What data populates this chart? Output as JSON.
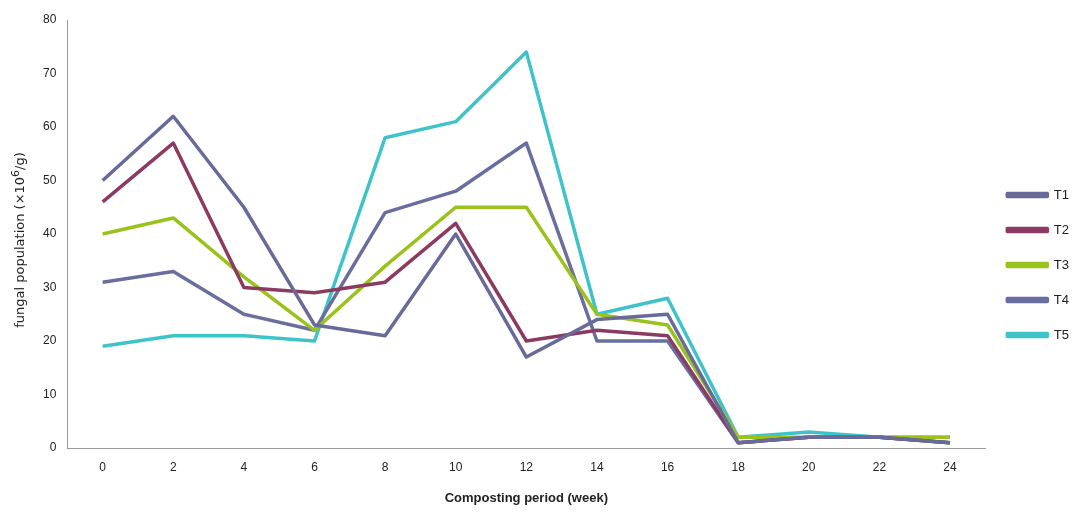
{
  "chart_data": {
    "type": "line",
    "xlabel": "Composting period (week)",
    "ylabel": "fungal population (×10$^{6}$/g)",
    "x": [
      0,
      2,
      4,
      6,
      8,
      10,
      12,
      14,
      16,
      18,
      20,
      22,
      24
    ],
    "xlim": [
      -1,
      25
    ],
    "xticks": [
      0,
      2,
      4,
      6,
      8,
      10,
      12,
      14,
      16,
      18,
      20,
      22,
      24
    ],
    "series": [
      {
        "name": "T1",
        "color": "#686a9a",
        "values": [
          50,
          62,
          45,
          23,
          21,
          40,
          17,
          24,
          25,
          1,
          2,
          2,
          1
        ]
      },
      {
        "name": "T2",
        "color": "#8b3a62",
        "values": [
          46,
          57,
          30,
          29,
          31,
          42,
          20,
          22,
          21,
          1,
          2,
          2,
          1
        ]
      },
      {
        "name": "T3",
        "color": "#99c21c",
        "values": [
          40,
          43,
          32,
          22,
          34,
          45,
          45,
          25,
          23,
          2,
          2,
          2,
          2
        ]
      },
      {
        "name": "T4",
        "color": "#6a6e9e",
        "values": [
          31,
          33,
          25,
          22,
          44,
          48,
          57,
          20,
          20,
          1,
          2,
          2,
          1
        ]
      },
      {
        "name": "T5",
        "color": "#3ec4c8",
        "values": [
          19,
          21,
          21,
          20,
          58,
          61,
          74,
          25,
          28,
          2,
          3,
          2,
          2
        ]
      }
    ],
    "ylim": [
      0,
      80
    ],
    "yticks": [
      0,
      10,
      20,
      30,
      40,
      50,
      60,
      70,
      80
    ],
    "grid": false,
    "legend": "right",
    "marker": "none",
    "line_style": "solid"
  }
}
